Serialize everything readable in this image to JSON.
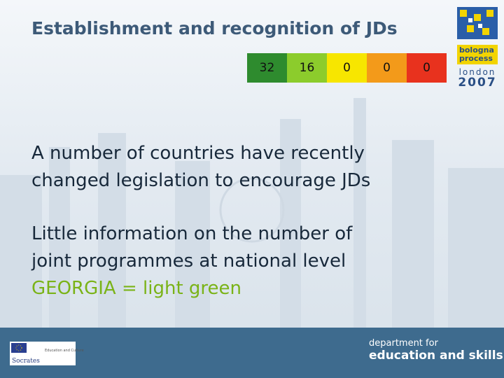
{
  "title": "Establishment and recognition of JDs",
  "scores": [
    32,
    16,
    0,
    0,
    0
  ],
  "body": {
    "paragraph1": [
      "A number of countries have recently",
      "changed legislation to encourage JDs"
    ],
    "paragraph2": [
      "Little information on the number of",
      "joint programmes at national level",
      "GEORGIA = light green"
    ]
  },
  "logo": {
    "line1": "bologna",
    "line2": "process",
    "line3": "london",
    "line4": "2007"
  },
  "footer": {
    "department_line1": "department for",
    "department_line2": "education and skills",
    "socrates": "Socrates",
    "eu_caption": "Education and Culture"
  }
}
